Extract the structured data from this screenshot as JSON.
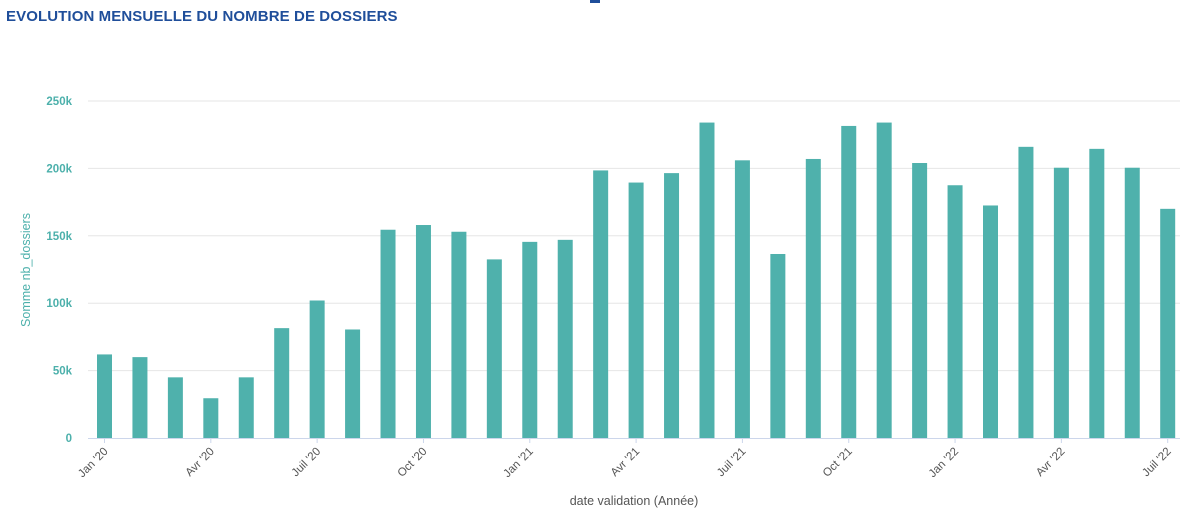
{
  "chart_data": {
    "type": "bar",
    "title": "EVOLUTION MENSUELLE DU NOMBRE DE DOSSIERS",
    "xlabel": "date validation (Année)",
    "ylabel": "Somme nb_dossiers",
    "ylim": [
      0,
      250000
    ],
    "yticks": [
      {
        "value": 0,
        "label": "0"
      },
      {
        "value": 50000,
        "label": "50k"
      },
      {
        "value": 100000,
        "label": "100k"
      },
      {
        "value": 150000,
        "label": "150k"
      },
      {
        "value": 200000,
        "label": "200k"
      },
      {
        "value": 250000,
        "label": "250k"
      }
    ],
    "xticks": [
      {
        "month": 0,
        "label": "Jan '20"
      },
      {
        "month": 3,
        "label": "Avr '20"
      },
      {
        "month": 6,
        "label": "Juil '20"
      },
      {
        "month": 9,
        "label": "Oct '20"
      },
      {
        "month": 12,
        "label": "Jan '21"
      },
      {
        "month": 15,
        "label": "Avr '21"
      },
      {
        "month": 18,
        "label": "Juil '21"
      },
      {
        "month": 21,
        "label": "Oct '21"
      },
      {
        "month": 24,
        "label": "Jan '22"
      },
      {
        "month": 27,
        "label": "Avr '22"
      },
      {
        "month": 30,
        "label": "Juil '22"
      }
    ],
    "categories": [
      "2020-01",
      "2020-02",
      "2020-03",
      "2020-04",
      "2020-05",
      "2020-06",
      "2020-07",
      "2020-08",
      "2020-09",
      "2020-10",
      "2020-11",
      "2020-12",
      "2021-01",
      "2021-02",
      "2021-03",
      "2021-04",
      "2021-05",
      "2021-06",
      "2021-07",
      "2021-08",
      "2021-09",
      "2021-10",
      "2021-11",
      "2021-12",
      "2022-01",
      "2022-02",
      "2022-03",
      "2022-04",
      "2022-05",
      "2022-06",
      "2022-07"
    ],
    "values": [
      62000,
      60000,
      45000,
      29500,
      45000,
      81500,
      102000,
      80500,
      154500,
      158000,
      153000,
      132500,
      145500,
      147000,
      198500,
      189500,
      196500,
      234000,
      206000,
      136500,
      207000,
      231500,
      234000,
      204000,
      187500,
      172500,
      216000,
      200500,
      214500,
      200500,
      170000
    ],
    "bar_color": "#4fb1ac",
    "grid": true,
    "legend": "none"
  }
}
